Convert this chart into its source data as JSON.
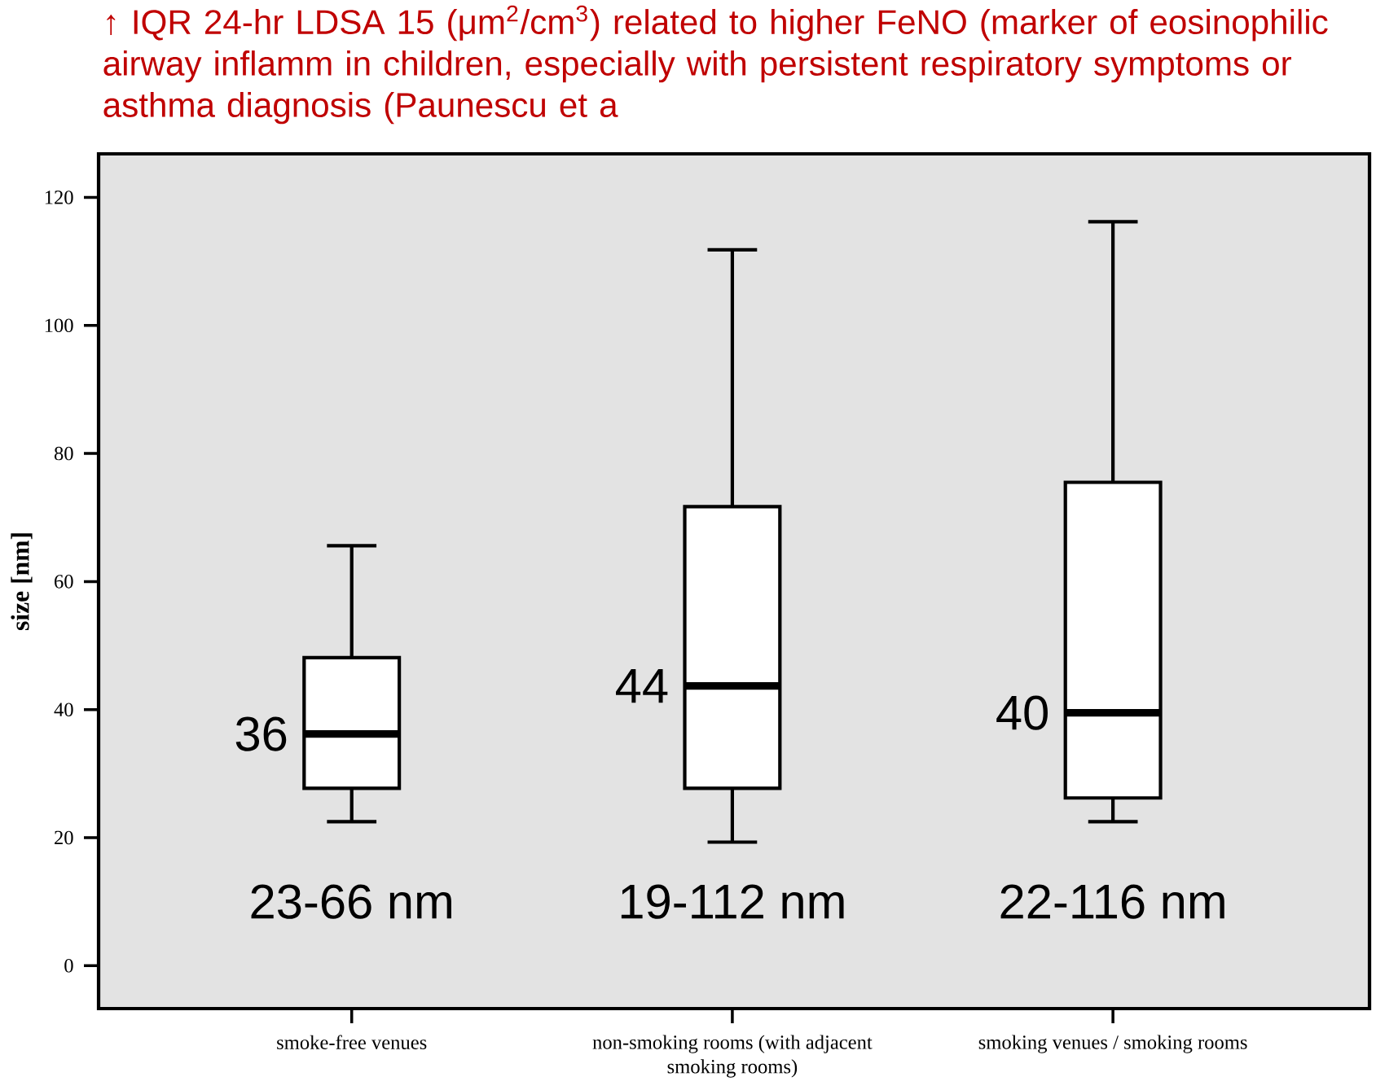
{
  "chart_data": {
    "type": "box",
    "ylabel": "size [nm]",
    "categories": [
      "smoke-free venues",
      "non-smoking rooms (with adjacent smoking rooms)",
      "smoking venues / smoking rooms"
    ],
    "boxes": [
      {
        "low": 22.5,
        "q1": 27.7,
        "median": 36.2,
        "q3": 48.1,
        "high": 65.6
      },
      {
        "low": 19.3,
        "q1": 27.7,
        "median": 43.7,
        "q3": 71.7,
        "high": 111.8
      },
      {
        "low": 22.5,
        "q1": 26.2,
        "median": 39.5,
        "q3": 75.5,
        "high": 116.2
      }
    ],
    "ylim": [
      -6.7,
      126.8
    ],
    "yticks": [
      0,
      20,
      40,
      60,
      80,
      100,
      120
    ],
    "annotations": [
      "↑ IQR 24-hr LDSA 15 (μm$^{2}$/cm$^{3}$) related to higher FeNO (marker of eosinophilic airway inflamm in children, especially with persistent respiratory symptoms or asthma diagnosis (Paunescu et a",
      "36",
      "44",
      "40",
      "23-66 nm",
      "19-112 nm",
      "22-116 nm"
    ]
  }
}
